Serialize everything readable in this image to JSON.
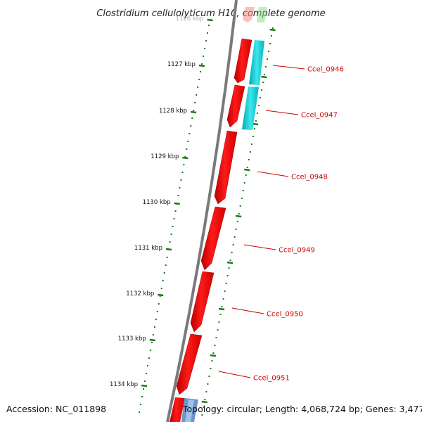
{
  "title": "Clostridium cellulolyticum H10, complete genome",
  "footer": {
    "accession": "Accession: NC_011898",
    "topology": "Topology: circular; Length: 4,068,724 bp; Genes: 3,477"
  },
  "kbp_labels": [
    "1126 kbp",
    "1127 kbp",
    "1128 kbp",
    "1129 kbp",
    "1130 kbp",
    "1131 kbp",
    "1132 kbp",
    "1133 kbp",
    "1134 kbp"
  ],
  "genes": [
    {
      "locus_tag": "Ccel_0946",
      "strand": "+",
      "color": "#e8000b"
    },
    {
      "locus_tag": "Ccel_0947",
      "strand": "+",
      "color": "#e8000b"
    },
    {
      "locus_tag": "Ccel_0948",
      "strand": "+",
      "color": "#e8000b"
    },
    {
      "locus_tag": "Ccel_0949",
      "strand": "+",
      "color": "#e8000b"
    },
    {
      "locus_tag": "Ccel_0950",
      "strand": "+",
      "color": "#e8000b"
    },
    {
      "locus_tag": "Ccel_0951",
      "strand": "+",
      "color": "#e8000b"
    }
  ],
  "colors": {
    "cds": "#e8000b",
    "similarity": "#00c8d0",
    "tick": "#1a7a1a",
    "backbone": "#808080",
    "label": "#cc0000"
  }
}
